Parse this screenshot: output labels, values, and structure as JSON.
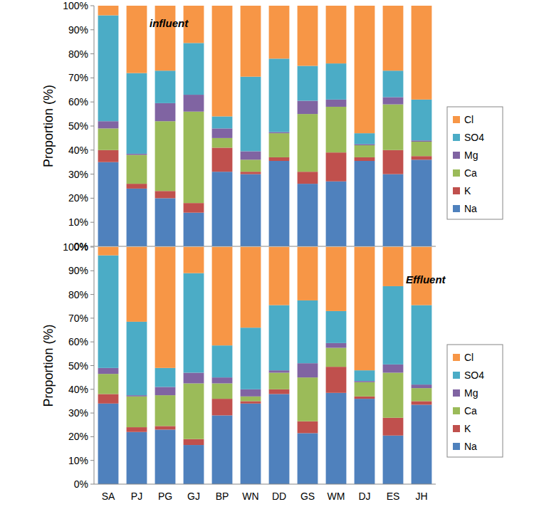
{
  "chart_data": [
    {
      "type": "bar",
      "stacked": true,
      "annotation": "influent",
      "y_label": "Proportion (%)",
      "categories": [
        "SA",
        "PJ",
        "PG",
        "GJ",
        "BP",
        "WN",
        "DD",
        "GS",
        "WM",
        "DJ",
        "ES",
        "JH"
      ],
      "ylim": [
        0,
        100
      ],
      "yticks": [
        {
          "value": 0,
          "label": "0%"
        },
        {
          "value": 10,
          "label": "10%"
        },
        {
          "value": 20,
          "label": "20%"
        },
        {
          "value": 30,
          "label": "30%"
        },
        {
          "value": 40,
          "label": "40%"
        },
        {
          "value": 50,
          "label": "50%"
        },
        {
          "value": 60,
          "label": "60%"
        },
        {
          "value": 70,
          "label": "70%"
        },
        {
          "value": 80,
          "label": "80%"
        },
        {
          "value": 90,
          "label": "90%"
        },
        {
          "value": 100,
          "label": "100%"
        }
      ],
      "grid": false,
      "legend": "right",
      "tick_labels": "y",
      "series": [
        {
          "name": "Na",
          "color": "#4F81BD",
          "values": [
            35,
            24,
            20,
            14,
            31,
            30,
            35.5,
            26,
            27,
            35.5,
            30,
            36
          ]
        },
        {
          "name": "K",
          "color": "#C0504D",
          "values": [
            5,
            2,
            3,
            4,
            10,
            1,
            1.5,
            5,
            12,
            1.5,
            10,
            1.5
          ]
        },
        {
          "name": "Ca",
          "color": "#9BBB59",
          "values": [
            9,
            12,
            29,
            38,
            4,
            5,
            10,
            24,
            19,
            5,
            19,
            6
          ]
        },
        {
          "name": "Mg",
          "color": "#8064A2",
          "values": [
            3,
            0.5,
            7.5,
            7,
            4,
            3.5,
            0.5,
            5.5,
            3,
            0.5,
            3,
            0.5
          ]
        },
        {
          "name": "SO4",
          "color": "#4BACC6",
          "values": [
            44,
            33.5,
            13.5,
            21.5,
            5,
            31,
            30.5,
            14.5,
            15,
            4.5,
            11,
            17
          ]
        },
        {
          "name": "Cl",
          "color": "#F79646",
          "values": [
            4,
            28,
            27,
            15.5,
            46,
            29.5,
            22,
            25,
            24,
            53,
            27,
            39
          ]
        }
      ]
    },
    {
      "type": "bar",
      "stacked": true,
      "annotation": "Effluent",
      "y_label": "Proportion (%)",
      "categories": [
        "SA",
        "PJ",
        "PG",
        "GJ",
        "BP",
        "WN",
        "DD",
        "GS",
        "WM",
        "DJ",
        "ES",
        "JH"
      ],
      "ylim": [
        0,
        100
      ],
      "yticks": [
        {
          "value": 0,
          "label": "0%"
        },
        {
          "value": 10,
          "label": "10%"
        },
        {
          "value": 20,
          "label": "20%"
        },
        {
          "value": 30,
          "label": "30%"
        },
        {
          "value": 40,
          "label": "40%"
        },
        {
          "value": 50,
          "label": "50%"
        },
        {
          "value": 60,
          "label": "60%"
        },
        {
          "value": 70,
          "label": "70%"
        },
        {
          "value": 80,
          "label": "80%"
        },
        {
          "value": 90,
          "label": "90%"
        },
        {
          "value": 100,
          "label": "100%"
        }
      ],
      "grid": false,
      "legend": "right",
      "series": [
        {
          "name": "Na",
          "color": "#4F81BD",
          "values": [
            34,
            22,
            23,
            16.5,
            29,
            34,
            38,
            21.5,
            38.5,
            36,
            20.5,
            33.5
          ]
        },
        {
          "name": "K",
          "color": "#C0504D",
          "values": [
            4,
            2,
            1.5,
            2.5,
            7,
            1,
            2,
            5,
            11,
            1,
            7.5,
            1.5
          ]
        },
        {
          "name": "Ca",
          "color": "#9BBB59",
          "values": [
            8.5,
            13,
            13,
            23.5,
            6.5,
            2,
            7,
            18.5,
            8,
            6,
            19,
            5.5
          ]
        },
        {
          "name": "Mg",
          "color": "#8064A2",
          "values": [
            2.5,
            0.5,
            3.5,
            4.5,
            2.5,
            3,
            1,
            6,
            2,
            0.5,
            3.5,
            1.5
          ]
        },
        {
          "name": "SO4",
          "color": "#4BACC6",
          "values": [
            47.5,
            31,
            8,
            42,
            13.5,
            26,
            27.5,
            26.5,
            13.5,
            4.5,
            33,
            33.5
          ]
        },
        {
          "name": "Cl",
          "color": "#F79646",
          "values": [
            3.5,
            31.5,
            51,
            11,
            41.5,
            34,
            24.5,
            22.5,
            27,
            52,
            16.5,
            24.5
          ]
        }
      ]
    }
  ]
}
